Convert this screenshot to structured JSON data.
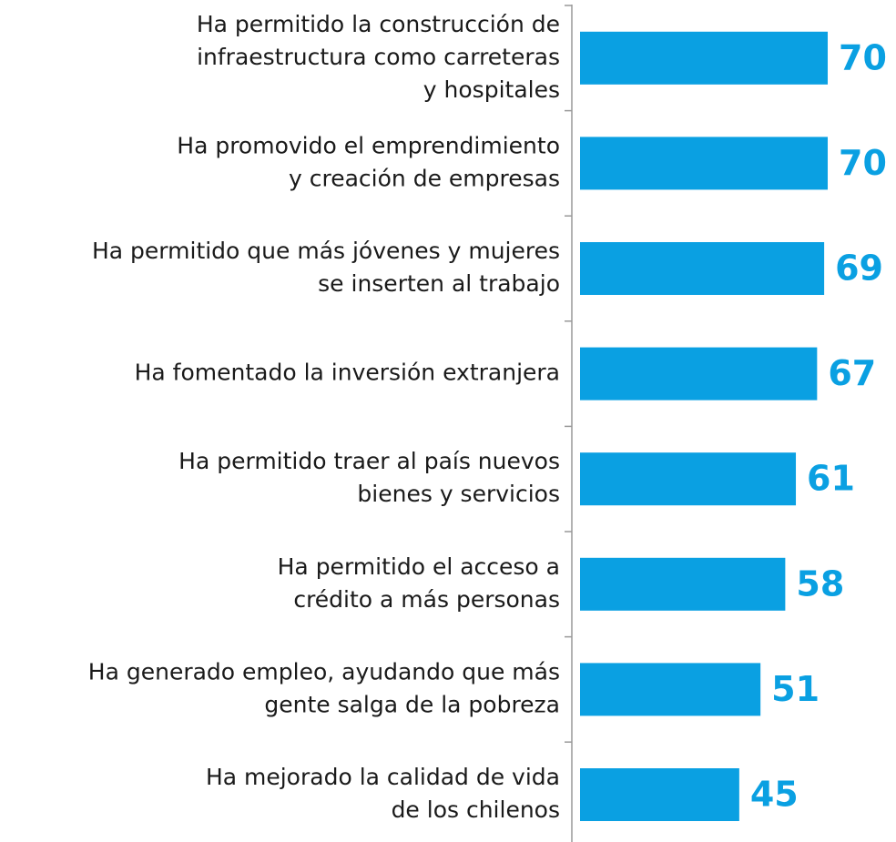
{
  "chart_data": {
    "type": "hbar",
    "categories": [
      [
        "Ha permitido la construcción de",
        "infraestructura como carreteras",
        "y hospitales"
      ],
      [
        "Ha promovido el emprendimiento",
        "y creación de empresas"
      ],
      [
        "Ha permitido que más jóvenes y mujeres",
        "se inserten al trabajo"
      ],
      [
        "Ha fomentado la inversión extranjera"
      ],
      [
        "Ha permitido traer al país nuevos",
        "bienes y servicios"
      ],
      [
        "Ha permitido el acceso a",
        "crédito a más personas"
      ],
      [
        "Ha generado empleo, ayudando que más",
        "gente salga de la pobreza"
      ],
      [
        "Ha mejorado la calidad de vida",
        "de los chilenos"
      ]
    ],
    "values": [
      70,
      70,
      69,
      67,
      61,
      58,
      51,
      45
    ],
    "color": "#0aa0e2",
    "xlim": [
      0,
      89.3
    ]
  }
}
